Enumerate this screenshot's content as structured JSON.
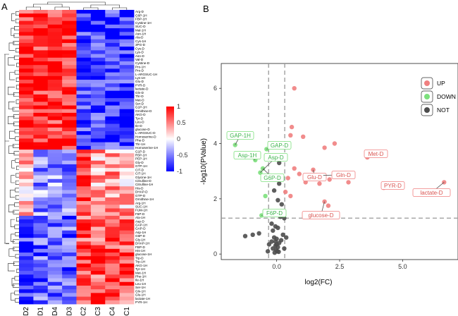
{
  "colors": {
    "up": "#F08080",
    "down": "#7CE07C",
    "not": "#4D4D4D",
    "heat_low": "#0000FF",
    "heat_mid": "#FFFFFF",
    "heat_high": "#FF0000"
  },
  "chart_data": [
    {
      "type": "heatmap",
      "panel": "A",
      "columns": [
        "D2",
        "D1",
        "D4",
        "D3",
        "C2",
        "C3",
        "C4",
        "C1"
      ],
      "rows": [
        "Arg-D",
        "G6P-1H",
        "FBP-1H",
        "Cystine-1H",
        "SUC-D",
        "Mal-1H",
        "Asn-1H",
        "Ala-D",
        "Cys-1H",
        "3PG-D",
        "Cys-D",
        "Lys-D",
        "Asn-D",
        "Val-D",
        "Cystine-D",
        "Pro-1H",
        "Pro-D",
        "L-ARGSUC-1H",
        "Lys-1H",
        "Glu-D",
        "PYR-D",
        "lactate-D",
        "Gln-D",
        "Thr-D",
        "Met-D",
        "Ser-D",
        "G1P-1H",
        "Ornithine-D",
        "AKG-D",
        "Tyr-D",
        "Leu-D",
        "Ile-D",
        "glucose-D",
        "L-ARGSUC-D",
        "Homoserine-D",
        "Phe-D",
        "Thr-1H",
        "Homoserine-1H",
        "G1P-D",
        "R5P-1H",
        "PEP-1H",
        "Gly-D",
        "GTP-1H",
        "CIT-D",
        "CIT-1H",
        "Glycine-1H",
        "Citrulline-D",
        "Citrulline-1H",
        "His-D",
        "DHAP-D",
        "GTP-D",
        "Ornithine-1H",
        "Arg-1H",
        "SUC-1H",
        "FUM-1H",
        "F6P-D",
        "Ala-1H",
        "Asp-D",
        "GAP-1H",
        "GAP-D",
        "Asp-1H",
        "G6P-D",
        "Gly-1H",
        "DHAP-1H",
        "FBP-D",
        "His-1H",
        "glucose-1H",
        "Trp-D",
        "Trp-1H",
        "AKG-1H",
        "Tyr-1H",
        "Met-1H",
        "Phe-1H",
        "Ile-1H",
        "Leu-1H",
        "Ser-1H",
        "Gln-1H",
        "Glu-1H",
        "lactate-1H",
        "PYR-1H"
      ],
      "legend_ticks": [
        "1",
        "0.5",
        "0",
        "-0.5",
        "-1"
      ],
      "range": [
        -1,
        1
      ]
    },
    {
      "type": "scatter",
      "panel": "B",
      "xlabel": "log2(FC)",
      "ylabel": "-log10(PValue)",
      "xticks": [
        "0.0",
        "2.5",
        "5.0"
      ],
      "yticks": [
        "0",
        "2",
        "4",
        "6"
      ],
      "xlim": [
        -2.2,
        7.2
      ],
      "ylim": [
        -0.2,
        6.9
      ],
      "thresholds": {
        "fc": [
          -0.32,
          0.32
        ],
        "p": 1.3
      },
      "legend": {
        "position": "top-right",
        "items": [
          "UP",
          "DOWN",
          "NOT"
        ]
      },
      "series": [
        {
          "name": "UP",
          "points": [
            [
              0.7,
              6.0
            ],
            [
              0.6,
              4.6
            ],
            [
              0.55,
              4.3
            ],
            [
              1.05,
              4.25
            ],
            [
              0.3,
              3.9
            ],
            [
              1.9,
              3.85
            ],
            [
              2.3,
              4.0
            ],
            [
              0.7,
              3.1
            ],
            [
              0.9,
              2.9
            ],
            [
              1.45,
              3.05
            ],
            [
              1.85,
              2.85
            ],
            [
              2.1,
              2.7
            ],
            [
              2.55,
              2.85
            ],
            [
              3.6,
              3.5
            ],
            [
              0.45,
              2.75
            ],
            [
              1.15,
              2.6
            ],
            [
              1.7,
              2.55
            ],
            [
              2.85,
              2.6
            ],
            [
              4.25,
              2.4
            ],
            [
              6.65,
              2.6
            ],
            [
              0.35,
              2.25
            ],
            [
              0.55,
              2.1
            ],
            [
              1.9,
              1.9
            ],
            [
              2.05,
              1.75
            ]
          ]
        },
        {
          "name": "DOWN",
          "points": [
            [
              -1.65,
              3.95
            ],
            [
              -0.75,
              3.6
            ],
            [
              -0.85,
              3.4
            ],
            [
              -0.55,
              3.1
            ],
            [
              -0.65,
              2.95
            ],
            [
              -0.4,
              3.8
            ],
            [
              -0.45,
              2.1
            ],
            [
              -0.6,
              1.4
            ]
          ]
        },
        {
          "name": "NOT",
          "points": [
            [
              0.1,
              3.3
            ],
            [
              0.1,
              2.55
            ],
            [
              -0.1,
              2.3
            ],
            [
              0.05,
              1.95
            ],
            [
              0.2,
              1.8
            ],
            [
              0.15,
              1.35
            ],
            [
              0.3,
              1.3
            ],
            [
              -0.2,
              1.1
            ],
            [
              -0.05,
              1.0
            ],
            [
              0.05,
              0.95
            ],
            [
              -0.15,
              0.85
            ],
            [
              -0.7,
              0.75
            ],
            [
              -0.95,
              0.7
            ],
            [
              -1.25,
              0.65
            ],
            [
              0.25,
              0.7
            ],
            [
              -0.1,
              0.6
            ],
            [
              0.0,
              0.55
            ],
            [
              -0.05,
              0.45
            ],
            [
              0.1,
              0.4
            ],
            [
              0.0,
              0.35
            ],
            [
              -0.05,
              0.3
            ],
            [
              0.05,
              0.25
            ],
            [
              -0.15,
              0.2
            ],
            [
              -0.02,
              0.15
            ],
            [
              0.02,
              0.1
            ],
            [
              -0.08,
              0.05
            ],
            [
              0.08,
              0.08
            ],
            [
              -0.2,
              0.45
            ],
            [
              0.18,
              0.5
            ],
            [
              -0.3,
              0.35
            ],
            [
              0.3,
              0.2
            ],
            [
              -0.35,
              0.1
            ],
            [
              0.38,
              0.6
            ]
          ]
        }
      ],
      "annotations": [
        {
          "label": "GAP-1H",
          "group": "DOWN"
        },
        {
          "label": "Asp-1H",
          "group": "DOWN"
        },
        {
          "label": "GAP-D",
          "group": "DOWN"
        },
        {
          "label": "G6P-D",
          "group": "DOWN"
        },
        {
          "label": "Asp-D",
          "group": "DOWN"
        },
        {
          "label": "F6P-D",
          "group": "DOWN"
        },
        {
          "label": "Met-D",
          "group": "UP"
        },
        {
          "label": "Glu-D",
          "group": "UP"
        },
        {
          "label": "Gln-D",
          "group": "UP"
        },
        {
          "label": "PYR-D",
          "group": "UP"
        },
        {
          "label": "lactate-D",
          "group": "UP"
        },
        {
          "label": "glucose-D",
          "group": "UP"
        }
      ]
    }
  ],
  "panels": {
    "a_letter": "A",
    "b_letter": "B"
  }
}
